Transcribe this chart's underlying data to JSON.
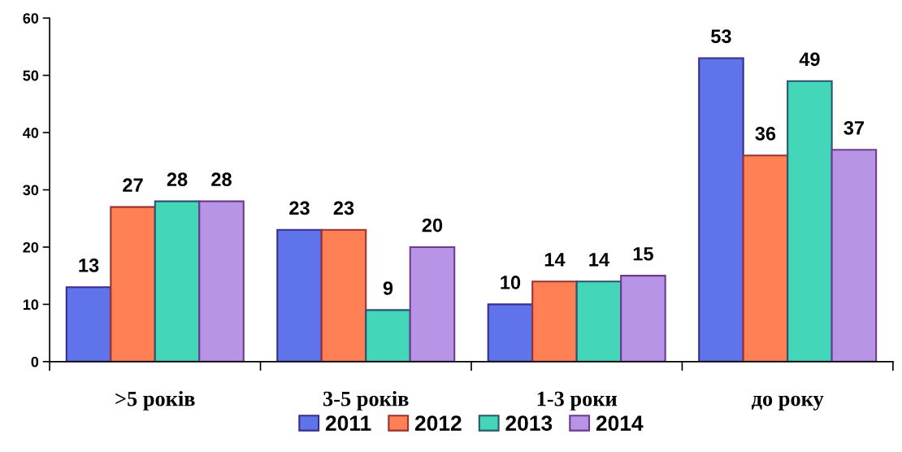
{
  "chart_data": {
    "type": "bar",
    "categories": [
      ">5 років",
      "3-5 років",
      "1-3 роки",
      "до року"
    ],
    "series": [
      {
        "name": "2011",
        "color": "#5f73ea",
        "values": [
          13,
          23,
          10,
          53
        ]
      },
      {
        "name": "2012",
        "color": "#ff8055",
        "values": [
          27,
          23,
          14,
          36
        ]
      },
      {
        "name": "2013",
        "color": "#44d6b8",
        "values": [
          28,
          9,
          14,
          49
        ]
      },
      {
        "name": "2014",
        "color": "#b894e6",
        "values": [
          28,
          20,
          15,
          37
        ]
      }
    ],
    "ylim": [
      0,
      60
    ],
    "yticks": [
      0,
      10,
      20,
      30,
      40,
      50,
      60
    ],
    "data_labels": true,
    "grid": false,
    "legend": "bottom"
  }
}
